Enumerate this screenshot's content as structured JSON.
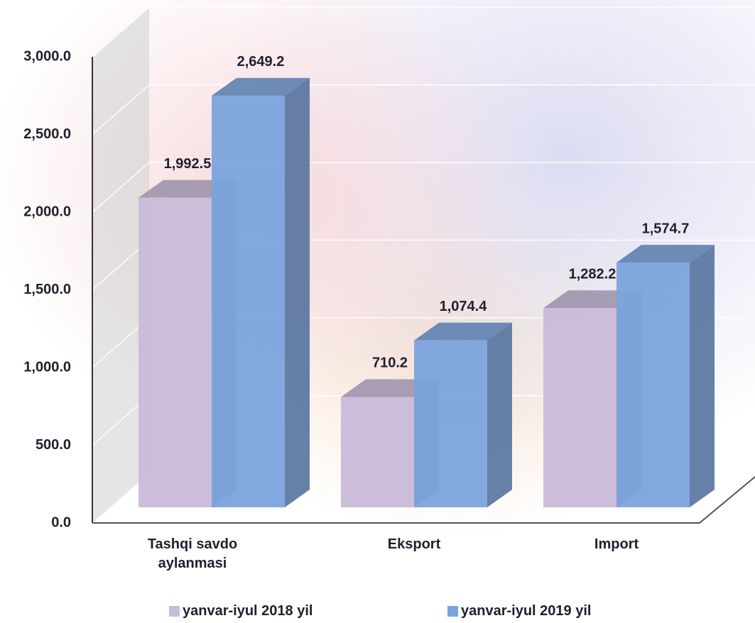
{
  "chart_data": {
    "type": "bar3d",
    "categories": [
      "Tashqi savdo aylanmasi",
      "Eksport",
      "Import"
    ],
    "series": [
      {
        "name": "yanvar-iyul 2018 yil",
        "color": "#c9bbd9",
        "values": [
          1992.5,
          710.2,
          1282.2
        ],
        "value_labels": [
          "1,992.5",
          "710.2",
          "1,282.2"
        ]
      },
      {
        "name": "yanvar-iyul 2019 yil",
        "color": "#7ba3dd",
        "values": [
          2649.2,
          1074.4,
          1574.7
        ],
        "value_labels": [
          "2,649.2",
          "1,074.4",
          "1,574.7"
        ]
      }
    ],
    "ylim": [
      0,
      3000
    ],
    "yticks": [
      {
        "value": 0,
        "label": "0.0"
      },
      {
        "value": 500,
        "label": "500.0"
      },
      {
        "value": 1000,
        "label": "1,000.0"
      },
      {
        "value": 1500,
        "label": "1,500.0"
      },
      {
        "value": 2000,
        "label": "2,000.0"
      },
      {
        "value": 2500,
        "label": "2,500.0"
      },
      {
        "value": 3000,
        "label": "3,000.0"
      }
    ],
    "grid": true,
    "legend": "bottom"
  }
}
